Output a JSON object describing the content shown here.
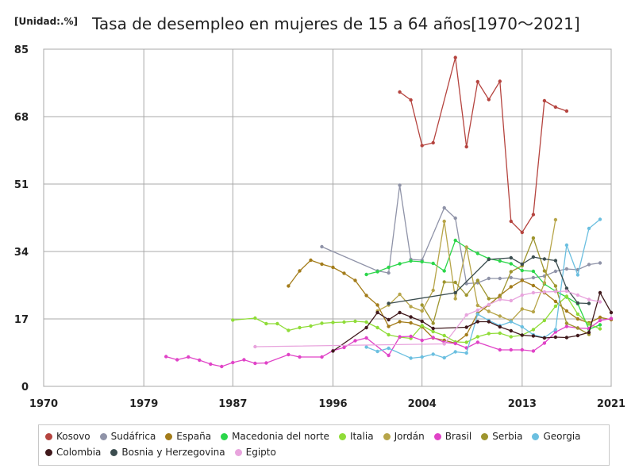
{
  "chart_data": {
    "type": "line",
    "title": "Tasa de desempleo en mujeres de 15 a 64 años[1970〜2021]",
    "unit_label": "[Unidad:.%]",
    "xlabel": "",
    "ylabel": "",
    "xlim": [
      1970,
      2021
    ],
    "ylim": [
      0,
      85
    ],
    "x_ticks": [
      "1970",
      "1979",
      "1987",
      "1996",
      "2004",
      "2013",
      "2021"
    ],
    "y_ticks": [
      "0",
      "17",
      "34",
      "51",
      "68",
      "85"
    ],
    "grid": true,
    "legend_position": "bottom",
    "series": [
      {
        "name": "Kosovo",
        "color": "#b5443f",
        "points": [
          [
            2002,
            74.2
          ],
          [
            2003,
            72.2
          ],
          [
            2004,
            60.7
          ],
          [
            2005,
            61.4
          ],
          [
            2007,
            82.9
          ],
          [
            2008,
            60.4
          ],
          [
            2009,
            76.8
          ],
          [
            2010,
            72.3
          ],
          [
            2011,
            76.9
          ],
          [
            2012,
            41.6
          ],
          [
            2013,
            38.8
          ],
          [
            2014,
            43.3
          ],
          [
            2015,
            72.0
          ],
          [
            2016,
            70.4
          ],
          [
            2017,
            69.4
          ]
        ]
      },
      {
        "name": "Sudáfrica",
        "color": "#8f93a8",
        "points": [
          [
            1995,
            35.2
          ],
          [
            2000,
            29.1
          ],
          [
            2001,
            28.6
          ],
          [
            2002,
            50.7
          ],
          [
            2003,
            32.0
          ],
          [
            2004,
            31.8
          ],
          [
            2006,
            45.0
          ],
          [
            2007,
            42.4
          ],
          [
            2008,
            25.9
          ],
          [
            2009,
            26.1
          ],
          [
            2010,
            27.2
          ],
          [
            2011,
            27.2
          ],
          [
            2012,
            27.4
          ],
          [
            2013,
            26.9
          ],
          [
            2014,
            27.4
          ],
          [
            2015,
            27.8
          ],
          [
            2016,
            29.0
          ],
          [
            2017,
            29.6
          ],
          [
            2018,
            29.4
          ],
          [
            2019,
            30.7
          ],
          [
            2020,
            31.1
          ]
        ]
      },
      {
        "name": "España",
        "color": "#a37c1a",
        "points": [
          [
            1992,
            25.3
          ],
          [
            1993,
            29.1
          ],
          [
            1994,
            31.8
          ],
          [
            1995,
            30.8
          ],
          [
            1996,
            30.0
          ],
          [
            1997,
            28.5
          ],
          [
            1998,
            26.7
          ],
          [
            1999,
            22.9
          ],
          [
            2000,
            20.5
          ],
          [
            2001,
            15.1
          ],
          [
            2002,
            16.3
          ],
          [
            2003,
            16.0
          ],
          [
            2004,
            15.0
          ],
          [
            2005,
            12.2
          ],
          [
            2006,
            11.6
          ],
          [
            2007,
            10.9
          ],
          [
            2008,
            13.0
          ],
          [
            2009,
            18.4
          ],
          [
            2010,
            20.5
          ],
          [
            2011,
            22.9
          ],
          [
            2012,
            25.1
          ],
          [
            2013,
            26.7
          ],
          [
            2014,
            25.4
          ],
          [
            2015,
            23.6
          ],
          [
            2016,
            21.4
          ],
          [
            2017,
            19.0
          ],
          [
            2018,
            17.0
          ],
          [
            2019,
            16.0
          ],
          [
            2020,
            17.4
          ],
          [
            2021,
            16.8
          ]
        ]
      },
      {
        "name": "Macedonia del norte",
        "color": "#2bd64a",
        "points": [
          [
            1999,
            28.2
          ],
          [
            2000,
            28.9
          ],
          [
            2001,
            30.0
          ],
          [
            2002,
            30.9
          ],
          [
            2003,
            31.6
          ],
          [
            2004,
            31.4
          ],
          [
            2005,
            31.0
          ],
          [
            2006,
            29.1
          ],
          [
            2007,
            36.8
          ],
          [
            2008,
            35.0
          ],
          [
            2009,
            33.5
          ],
          [
            2010,
            32.2
          ],
          [
            2011,
            31.6
          ],
          [
            2012,
            30.9
          ],
          [
            2013,
            29.2
          ],
          [
            2014,
            29.0
          ],
          [
            2015,
            25.8
          ],
          [
            2016,
            24.0
          ],
          [
            2017,
            22.5
          ],
          [
            2018,
            20.8
          ],
          [
            2019,
            14.4
          ],
          [
            2020,
            15.5
          ]
        ]
      },
      {
        "name": "Italia",
        "color": "#8fdc38",
        "points": [
          [
            1987,
            16.7
          ],
          [
            1989,
            17.2
          ],
          [
            1990,
            15.8
          ],
          [
            1991,
            15.8
          ],
          [
            1992,
            14.1
          ],
          [
            1993,
            14.8
          ],
          [
            1994,
            15.2
          ],
          [
            1995,
            15.9
          ],
          [
            1996,
            16.1
          ],
          [
            1997,
            16.2
          ],
          [
            1998,
            16.4
          ],
          [
            1999,
            16.2
          ],
          [
            2000,
            14.8
          ],
          [
            2001,
            13.0
          ],
          [
            2002,
            12.4
          ],
          [
            2003,
            12.1
          ],
          [
            2004,
            15.3
          ],
          [
            2005,
            13.8
          ],
          [
            2006,
            12.8
          ],
          [
            2007,
            11.2
          ],
          [
            2008,
            11.1
          ],
          [
            2009,
            12.5
          ],
          [
            2010,
            13.3
          ],
          [
            2011,
            13.4
          ],
          [
            2012,
            12.5
          ],
          [
            2013,
            12.9
          ],
          [
            2014,
            14.3
          ],
          [
            2015,
            16.6
          ],
          [
            2016,
            20.2
          ],
          [
            2017,
            22.7
          ],
          [
            2018,
            18.2
          ],
          [
            2019,
            15.7
          ],
          [
            2020,
            14.5
          ]
        ]
      },
      {
        "name": "Jordán",
        "color": "#b7a549",
        "points": [
          [
            2000,
            19.0
          ],
          [
            2001,
            20.5
          ],
          [
            2002,
            23.2
          ],
          [
            2003,
            20.1
          ],
          [
            2004,
            19.0
          ],
          [
            2005,
            24.2
          ],
          [
            2006,
            41.6
          ],
          [
            2007,
            22.1
          ],
          [
            2008,
            35.1
          ],
          [
            2009,
            20.4
          ],
          [
            2010,
            18.9
          ],
          [
            2011,
            17.7
          ],
          [
            2012,
            16.5
          ],
          [
            2013,
            19.5
          ],
          [
            2014,
            18.8
          ],
          [
            2015,
            26.1
          ],
          [
            2016,
            42.0
          ]
        ]
      },
      {
        "name": "Brasil",
        "color": "#e043c7",
        "points": [
          [
            1981,
            7.5
          ],
          [
            1982,
            6.7
          ],
          [
            1983,
            7.4
          ],
          [
            1984,
            6.6
          ],
          [
            1985,
            5.6
          ],
          [
            1986,
            5.0
          ],
          [
            1987,
            6.0
          ],
          [
            1988,
            6.7
          ],
          [
            1989,
            5.8
          ],
          [
            1990,
            5.9
          ],
          [
            1992,
            8.0
          ],
          [
            1993,
            7.4
          ],
          [
            1995,
            7.4
          ],
          [
            1996,
            9.0
          ],
          [
            1997,
            9.8
          ],
          [
            1998,
            11.5
          ],
          [
            1999,
            12.2
          ],
          [
            2001,
            7.8
          ],
          [
            2002,
            12.5
          ],
          [
            2003,
            12.6
          ],
          [
            2004,
            11.6
          ],
          [
            2005,
            12.3
          ],
          [
            2006,
            11.1
          ],
          [
            2007,
            10.8
          ],
          [
            2008,
            9.7
          ],
          [
            2009,
            11.1
          ],
          [
            2011,
            9.2
          ],
          [
            2012,
            9.2
          ],
          [
            2013,
            9.2
          ],
          [
            2014,
            8.9
          ],
          [
            2015,
            10.9
          ],
          [
            2016,
            13.7
          ],
          [
            2017,
            15.1
          ],
          [
            2018,
            14.7
          ],
          [
            2019,
            14.6
          ],
          [
            2020,
            16.6
          ],
          [
            2021,
            17.1
          ]
        ]
      },
      {
        "name": "Serbia",
        "color": "#9e952e",
        "points": [
          [
            2004,
            20.5
          ],
          [
            2005,
            15.9
          ],
          [
            2006,
            26.3
          ],
          [
            2007,
            26.2
          ],
          [
            2008,
            23.0
          ],
          [
            2009,
            26.7
          ],
          [
            2010,
            22.1
          ],
          [
            2011,
            22.3
          ],
          [
            2012,
            28.9
          ],
          [
            2013,
            30.4
          ],
          [
            2014,
            37.4
          ],
          [
            2015,
            29.1
          ],
          [
            2016,
            25.3
          ],
          [
            2017,
            15.9
          ],
          [
            2018,
            14.7
          ],
          [
            2019,
            13.1
          ]
        ]
      },
      {
        "name": "Georgia",
        "color": "#6bbfe0",
        "points": [
          [
            1999,
            9.9
          ],
          [
            2000,
            8.8
          ],
          [
            2001,
            9.6
          ],
          [
            2003,
            7.1
          ],
          [
            2004,
            7.4
          ],
          [
            2005,
            8.1
          ],
          [
            2006,
            7.2
          ],
          [
            2007,
            8.7
          ],
          [
            2008,
            8.4
          ],
          [
            2009,
            18.2
          ],
          [
            2010,
            16.6
          ],
          [
            2011,
            15.3
          ],
          [
            2012,
            16.3
          ],
          [
            2013,
            15.0
          ],
          [
            2014,
            13.0
          ],
          [
            2015,
            12.3
          ],
          [
            2016,
            14.3
          ],
          [
            2017,
            35.6
          ],
          [
            2018,
            28.1
          ],
          [
            2019,
            39.8
          ],
          [
            2020,
            42.1
          ]
        ]
      },
      {
        "name": "Colombia",
        "color": "#40191c",
        "points": [
          [
            1996,
            8.9
          ],
          [
            1999,
            14.8
          ],
          [
            2000,
            18.6
          ],
          [
            2001,
            16.8
          ],
          [
            2002,
            18.6
          ],
          [
            2003,
            17.5
          ],
          [
            2004,
            16.4
          ],
          [
            2005,
            14.6
          ],
          [
            2008,
            14.9
          ],
          [
            2009,
            16.3
          ],
          [
            2010,
            16.3
          ],
          [
            2011,
            15.0
          ],
          [
            2012,
            14.0
          ],
          [
            2013,
            12.9
          ],
          [
            2014,
            12.7
          ],
          [
            2015,
            12.2
          ],
          [
            2016,
            12.4
          ],
          [
            2017,
            12.3
          ],
          [
            2018,
            12.8
          ],
          [
            2019,
            13.6
          ],
          [
            2020,
            23.6
          ],
          [
            2021,
            18.6
          ]
        ]
      },
      {
        "name": "Bosnia y Herzegovina",
        "color": "#3b4d4f",
        "points": [
          [
            2001,
            20.9
          ],
          [
            2007,
            23.6
          ],
          [
            2010,
            32.0
          ],
          [
            2012,
            32.4
          ],
          [
            2013,
            30.8
          ],
          [
            2014,
            32.6
          ],
          [
            2015,
            32.1
          ],
          [
            2016,
            31.7
          ],
          [
            2017,
            24.7
          ],
          [
            2018,
            21.0
          ],
          [
            2019,
            20.9
          ]
        ]
      },
      {
        "name": "Egipto",
        "color": "#e8a4dd",
        "points": [
          [
            1989,
            10.0
          ],
          [
            2006,
            10.7
          ],
          [
            2008,
            18.0
          ],
          [
            2009,
            19.2
          ],
          [
            2010,
            20.6
          ],
          [
            2011,
            21.9
          ],
          [
            2012,
            21.6
          ],
          [
            2013,
            23.0
          ],
          [
            2014,
            23.6
          ],
          [
            2015,
            23.8
          ],
          [
            2016,
            23.9
          ],
          [
            2017,
            24.0
          ],
          [
            2018,
            23.0
          ],
          [
            2019,
            21.9
          ],
          [
            2020,
            21.3
          ]
        ]
      }
    ]
  }
}
